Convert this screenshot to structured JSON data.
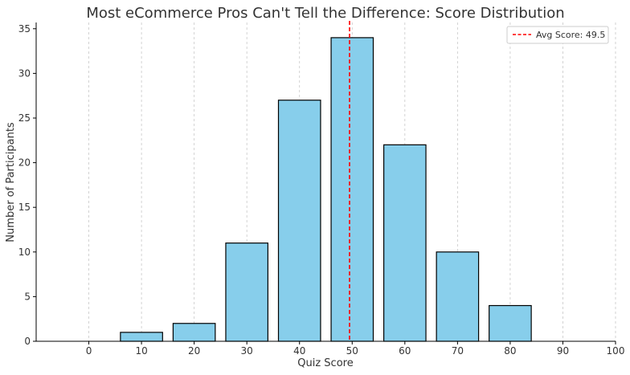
{
  "chart_data": {
    "type": "bar",
    "title": "Most eCommerce Pros Can't Tell the Difference: Score Distribution",
    "xlabel": "Quiz Score",
    "ylabel": "Number of Participants",
    "categories": [
      10,
      20,
      30,
      40,
      50,
      60,
      70,
      80
    ],
    "values": [
      1,
      2,
      11,
      27,
      34,
      22,
      10,
      4
    ],
    "xlim": [
      -10,
      100
    ],
    "ylim": [
      0,
      35.7
    ],
    "xticks": [
      0,
      10,
      20,
      30,
      40,
      50,
      60,
      70,
      80,
      90,
      100
    ],
    "yticks": [
      0,
      5,
      10,
      15,
      20,
      25,
      30,
      35
    ],
    "grid": "x-axis vertical dashed",
    "bar_color": "#87ceeb",
    "bar_edge_color": "#000000",
    "reference_line": {
      "x": 49.5,
      "label": "Avg Score: 49.5",
      "color": "#ff0000",
      "style": "dashed"
    },
    "legend": {
      "placement": "top-right",
      "entries": [
        "Avg Score: 49.5"
      ]
    }
  }
}
